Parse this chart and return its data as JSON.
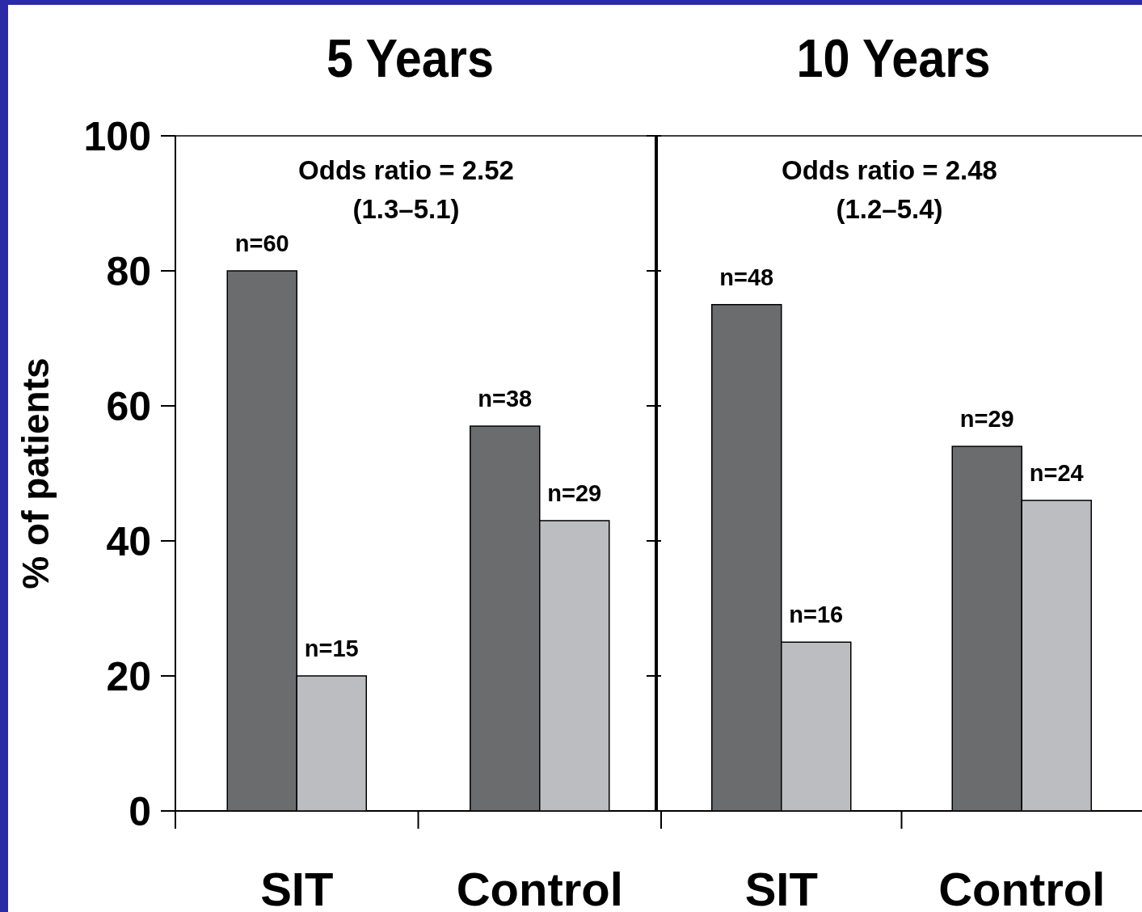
{
  "chart_data": [
    {
      "type": "bar",
      "title": "5 Years",
      "ylabel": "% of patients",
      "categories": [
        "SIT",
        "Control"
      ],
      "series": [
        {
          "color": "#6b6c6e",
          "values": [
            80,
            57
          ]
        },
        {
          "color": "#bcbdc0",
          "values": [
            20,
            43
          ]
        }
      ],
      "ylim": [
        0,
        100
      ],
      "yticks": [
        0,
        20,
        40,
        60,
        80,
        100
      ],
      "annotations": [
        "Odds ratio = 2.52\n(1.3–5.1)",
        {
          "text": "n=60",
          "x": "SIT",
          "y": 80
        },
        {
          "text": "n=15",
          "x": "SIT",
          "y": 20
        },
        {
          "text": "n=38",
          "x": "Control",
          "y": 57
        },
        {
          "text": "n=29",
          "x": "Control",
          "y": 43
        }
      ]
    },
    {
      "type": "bar",
      "title": "10 Years",
      "categories": [
        "SIT",
        "Control"
      ],
      "series": [
        {
          "color": "#6b6c6e",
          "values": [
            75,
            54
          ]
        },
        {
          "color": "#bcbdc0",
          "values": [
            25,
            46
          ]
        }
      ],
      "ylim": [
        0,
        100
      ],
      "yticks": [
        0,
        20,
        40,
        60,
        80,
        100
      ],
      "tick_labels": "x",
      "annotations": [
        "Odds ratio = 2.48\n(1.2–5.4)",
        {
          "text": "n=48",
          "x": "SIT",
          "y": 75
        },
        {
          "text": "n=16",
          "x": "SIT",
          "y": 25
        },
        {
          "text": "n=29",
          "x": "Control",
          "y": 54
        },
        {
          "text": "n=24",
          "x": "Control",
          "y": 46
        }
      ]
    }
  ]
}
